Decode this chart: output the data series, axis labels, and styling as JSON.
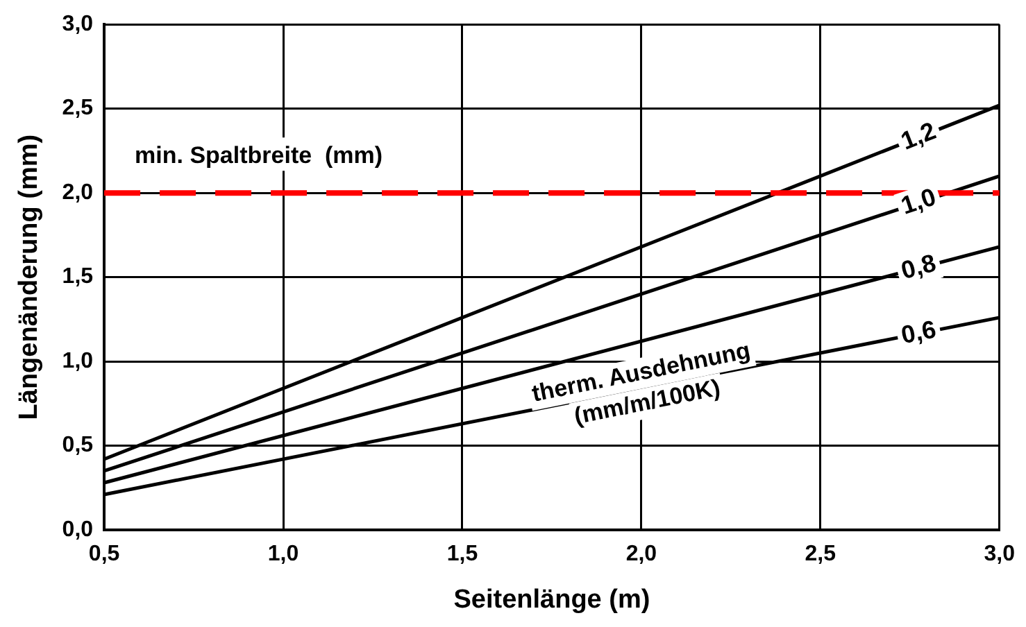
{
  "chart_data": {
    "type": "line",
    "xlabel": "Seitenlänge (m)",
    "ylabel": "Längenänderung (mm)",
    "x": [
      0.5,
      3.0
    ],
    "series": [
      {
        "name": "1,2",
        "color": "#000000",
        "values": [
          0.42,
          2.52
        ]
      },
      {
        "name": "1,0",
        "color": "#000000",
        "values": [
          0.35,
          2.1
        ]
      },
      {
        "name": "0,8",
        "color": "#000000",
        "values": [
          0.28,
          1.68
        ]
      },
      {
        "name": "0,6",
        "color": "#000000",
        "values": [
          0.21,
          1.26
        ]
      }
    ],
    "xlim": [
      0.5,
      3.0
    ],
    "xticks": [
      {
        "value": 0.5,
        "label": "0,5"
      },
      {
        "value": 1.0,
        "label": "1,0"
      },
      {
        "value": 1.5,
        "label": "1,5"
      },
      {
        "value": 2.0,
        "label": "2,0"
      },
      {
        "value": 2.5,
        "label": "2,5"
      },
      {
        "value": 3.0,
        "label": "3,0"
      }
    ],
    "ylim": [
      0,
      3.0
    ],
    "yticks": [
      {
        "value": 0,
        "label": "0,0"
      },
      {
        "value": 0.5,
        "label": "0,5"
      },
      {
        "value": 1.0,
        "label": "1,0"
      },
      {
        "value": 1.5,
        "label": "1,5"
      },
      {
        "value": 2.0,
        "label": "2,0"
      },
      {
        "value": 2.5,
        "label": "2,5"
      },
      {
        "value": 3.0,
        "label": "3,0"
      }
    ],
    "ref_lines": [
      {
        "axis": "y",
        "value": 2.0,
        "label": "min. Spaltbreite  (mm)",
        "color": "#ff0000",
        "line_style": "dashed"
      }
    ],
    "annotations": [
      "therm. Ausdehnung\n(mm/m/100K)"
    ],
    "grid": true,
    "legend": false,
    "marker": "none",
    "line_style": "solid"
  }
}
